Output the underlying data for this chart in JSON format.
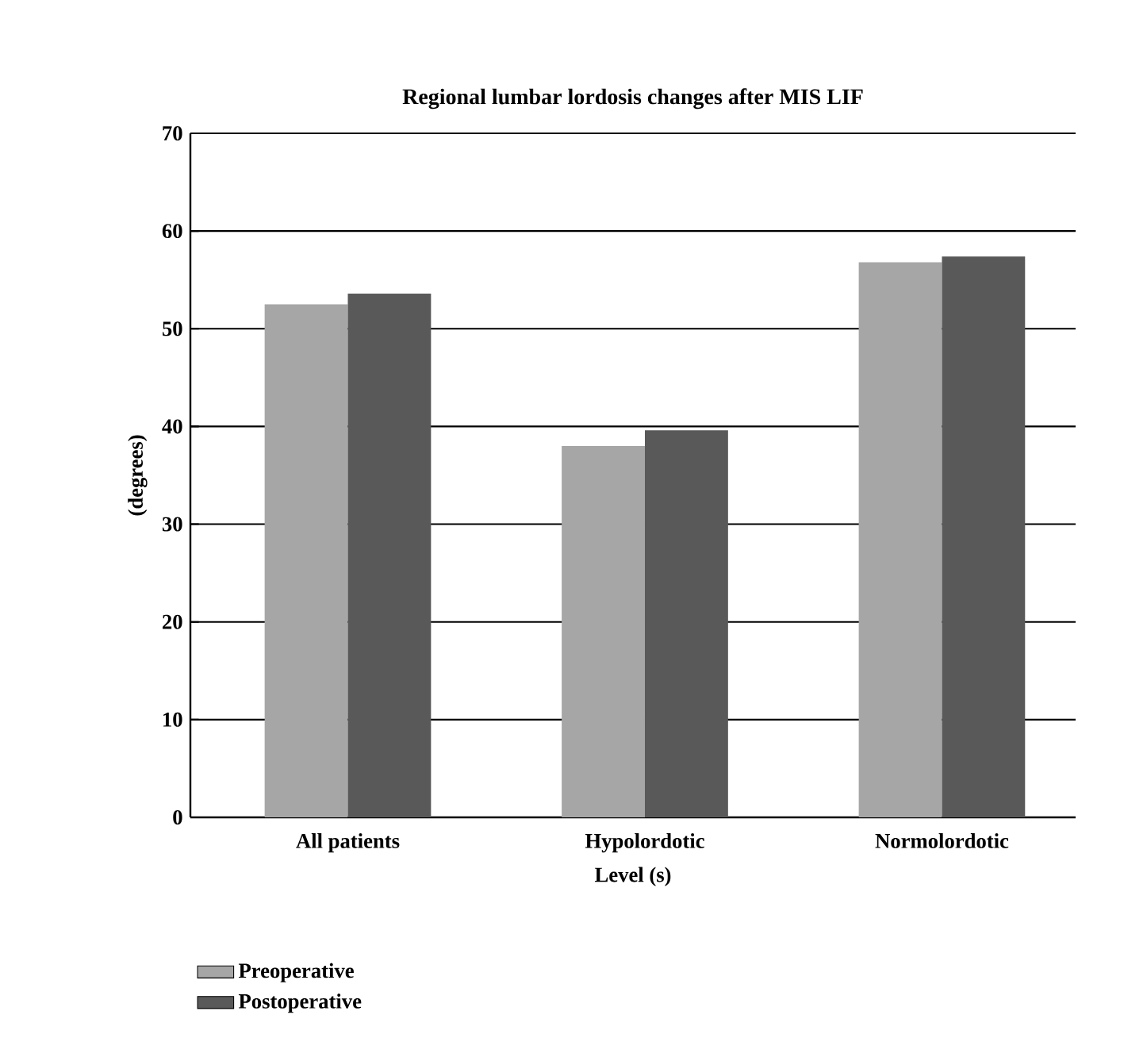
{
  "chart_data": {
    "type": "bar",
    "title": "Regional lumbar lordosis changes after MIS LIF",
    "xlabel": "Level (s)",
    "ylabel": "(degrees)",
    "categories": [
      "All patients",
      "Hypolordotic",
      "Normolordotic"
    ],
    "series": [
      {
        "name": "Preoperative",
        "color": "#a6a6a6",
        "values": [
          52.5,
          38.0,
          56.8
        ]
      },
      {
        "name": "Postoperative",
        "color": "#595959",
        "values": [
          53.6,
          39.6,
          57.4
        ]
      }
    ],
    "ylim": [
      0,
      70
    ],
    "yticks": [
      0,
      10,
      20,
      30,
      40,
      50,
      60,
      70
    ],
    "grid": "y",
    "legend": "bottom"
  }
}
